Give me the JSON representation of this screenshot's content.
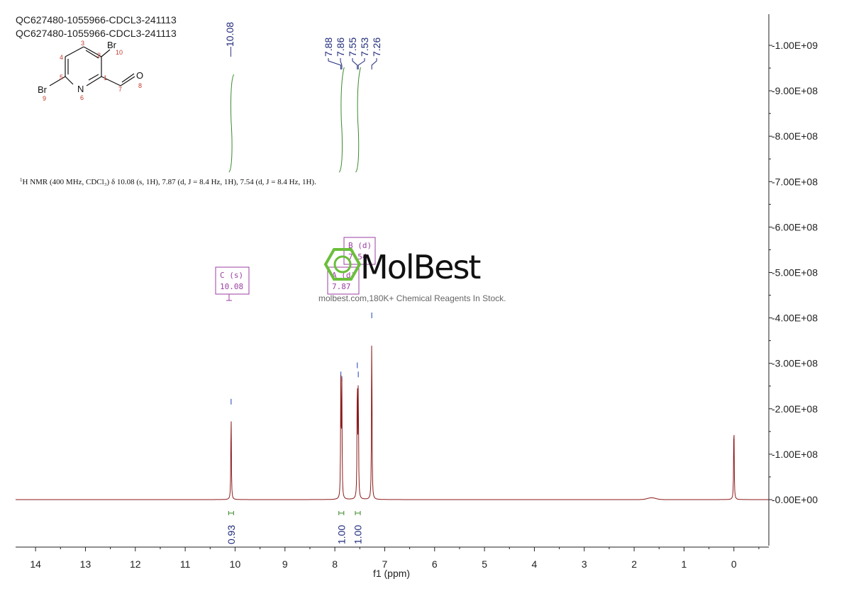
{
  "titles": [
    "QC627480-1055966-CDCL3-241113",
    "QC627480-1055966-CDCL3-241113"
  ],
  "nmr_description": {
    "nucleus_sup": "1",
    "text": "H NMR (400 MHz, CDCl₃) δ 10.08 (s, 1H), 7.87 (d, J = 8.4 Hz, 1H), 7.54 (d, J = 8.4 Hz, 1H)."
  },
  "structure": {
    "atoms": [
      {
        "label": "Br",
        "num": "10"
      },
      {
        "label": "N",
        "num": "6"
      },
      {
        "label": "Br",
        "num": "9"
      },
      {
        "label": "O",
        "num": "8"
      }
    ],
    "ring_numbers": [
      "1",
      "2",
      "3",
      "4",
      "5",
      "7"
    ]
  },
  "multiplet_boxes": [
    {
      "line1": "C (s)",
      "line2": "10.08"
    },
    {
      "line1": "A (d)",
      "line2": "7.87"
    },
    {
      "line1": "B (d)",
      "line2": "7.54"
    }
  ],
  "watermark": {
    "brand": "MolBest",
    "tagline": "molbest.com,180K+ Chemical Reagents In Stock."
  },
  "colors": {
    "spectrum": "#8b1a1a",
    "integral": "#3a8a2a",
    "peak_label": "#1f2a7a",
    "box": "#9b3fa3",
    "watermark_ring": "#6abf3a"
  },
  "chart_data": {
    "type": "line",
    "title": "",
    "xlabel": "f1 (ppm)",
    "ylabel": "",
    "x_reversed": true,
    "xlim": [
      14.4,
      -0.7
    ],
    "ylim": [
      -100000000.0,
      1050000000.0
    ],
    "x_ticks": [
      "14",
      "13",
      "12",
      "11",
      "10",
      "9",
      "8",
      "7",
      "6",
      "5",
      "4",
      "3",
      "2",
      "1",
      "0"
    ],
    "y_ticks": [
      "1.00E+09",
      "9.00E+08",
      "8.00E+08",
      "7.00E+08",
      "6.00E+08",
      "5.00E+08",
      "4.00E+08",
      "3.00E+08",
      "2.00E+08",
      "1.00E+08",
      "0.00E+00"
    ],
    "y_tick_values": [
      1000000000.0,
      900000000.0,
      800000000.0,
      700000000.0,
      600000000.0,
      500000000.0,
      400000000.0,
      300000000.0,
      200000000.0,
      100000000.0,
      0
    ],
    "peaks": [
      {
        "ppm": 10.08,
        "height": 200000000.0
      },
      {
        "ppm": 7.88,
        "height": 260000000.0
      },
      {
        "ppm": 7.86,
        "height": 250000000.0
      },
      {
        "ppm": 7.55,
        "height": 280000000.0
      },
      {
        "ppm": 7.53,
        "height": 260000000.0
      },
      {
        "ppm": 7.26,
        "height": 390000000.0
      },
      {
        "ppm": 0.0,
        "height": 185000000.0
      }
    ],
    "peak_labels": [
      {
        "text": "10.08",
        "ppm": 10.08
      },
      {
        "text": "7.88",
        "ppm": 7.88
      },
      {
        "text": "7.86",
        "ppm": 7.86
      },
      {
        "text": "7.55",
        "ppm": 7.55
      },
      {
        "text": "7.53",
        "ppm": 7.53
      },
      {
        "text": "7.26",
        "ppm": 7.26
      }
    ],
    "integrals": [
      {
        "from": 10.13,
        "to": 10.03,
        "value": "0.93"
      },
      {
        "from": 7.92,
        "to": 7.82,
        "value": "1.00"
      },
      {
        "from": 7.59,
        "to": 7.49,
        "value": "1.00"
      }
    ]
  }
}
